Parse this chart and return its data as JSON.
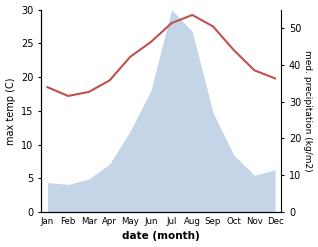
{
  "months": [
    "Jan",
    "Feb",
    "Mar",
    "Apr",
    "May",
    "Jun",
    "Jul",
    "Aug",
    "Sep",
    "Oct",
    "Nov",
    "Dec"
  ],
  "temperature": [
    18.5,
    17.2,
    17.8,
    19.5,
    23.0,
    25.2,
    28.0,
    29.2,
    27.5,
    24.0,
    21.0,
    19.8
  ],
  "precipitation": [
    8.0,
    7.5,
    9.0,
    13.0,
    22.0,
    33.0,
    55.0,
    49.0,
    27.0,
    15.5,
    10.0,
    11.5
  ],
  "temp_color": "#c0504d",
  "precip_color": "#c5d5e8",
  "ylabel_left": "max temp (C)",
  "ylabel_right": "med. precipitation (kg/m2)",
  "xlabel": "date (month)",
  "ylim_left": [
    0,
    30
  ],
  "ylim_right": [
    0,
    55
  ],
  "yticks_left": [
    0,
    5,
    10,
    15,
    20,
    25,
    30
  ],
  "yticks_right": [
    0,
    10,
    20,
    30,
    40,
    50
  ],
  "background_color": "#ffffff"
}
